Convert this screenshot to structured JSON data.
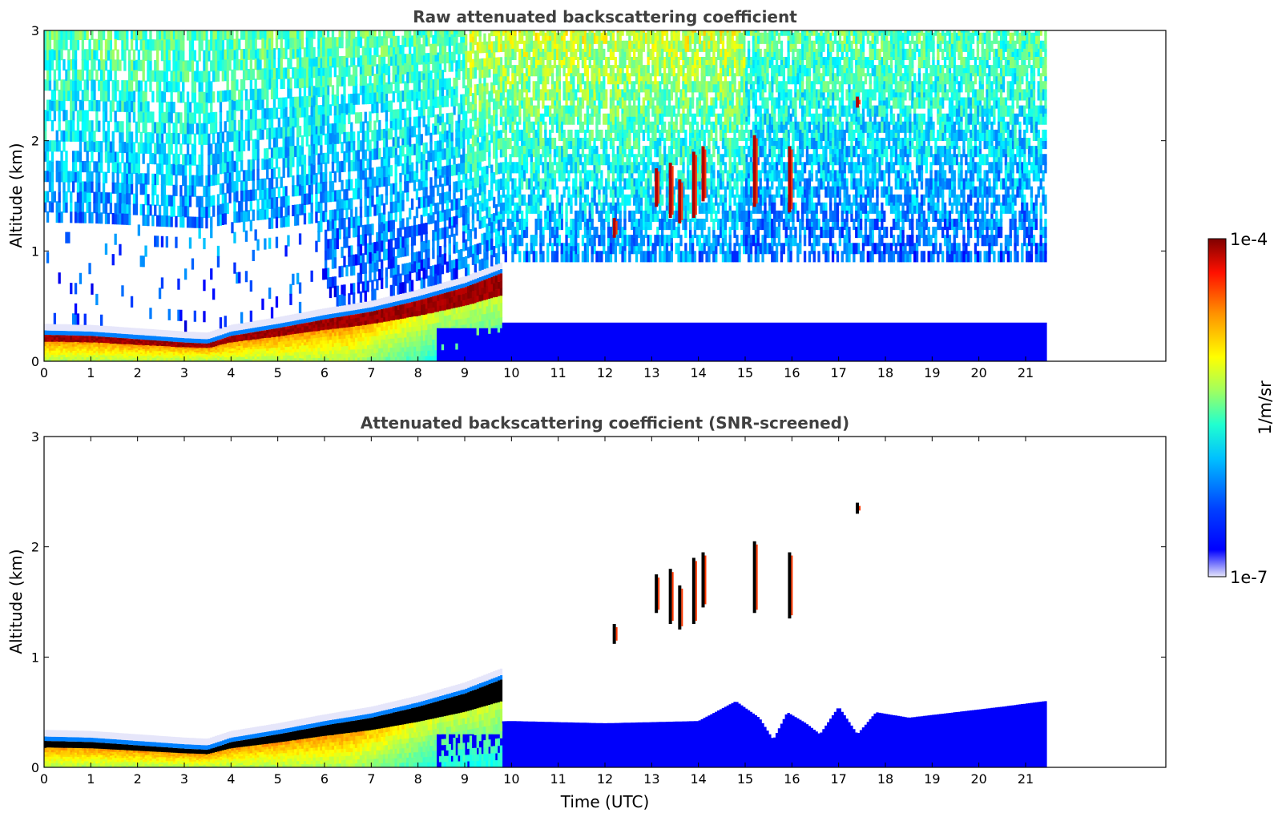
{
  "colors": {
    "jet": [
      "#00008f",
      "#0000ff",
      "#0080ff",
      "#00ffff",
      "#80ff80",
      "#ffff00",
      "#ff8000",
      "#ff0000",
      "#800000"
    ],
    "faint": "#e6e6fa",
    "screened_core": "#000000",
    "background": "#ffffff"
  },
  "chart_data": [
    {
      "type": "heatmap",
      "title": "Raw attenuated backscattering coefficient",
      "xlabel": "",
      "ylabel": "Altitude (km)",
      "xlim": [
        0,
        24
      ],
      "ylim": [
        0,
        3
      ],
      "x_ticks": [
        0,
        1,
        2,
        3,
        4,
        5,
        6,
        7,
        8,
        9,
        10,
        11,
        12,
        13,
        14,
        15,
        16,
        17,
        18,
        19,
        20,
        21
      ],
      "x_tick_labels": [
        "0",
        "1",
        "2",
        "3",
        "4",
        "5",
        "6",
        "7",
        "8",
        "9",
        "10",
        "11",
        "12",
        "13",
        "14",
        "15",
        "16",
        "17",
        "18",
        "19",
        "20",
        "21"
      ],
      "y_ticks": [
        0,
        1,
        2,
        3
      ],
      "y_tick_labels": [
        "0",
        "1",
        "2",
        "3"
      ],
      "data_extent_hours": [
        0,
        21.45
      ],
      "screened": false,
      "layer_top_km": [
        [
          0,
          0.24
        ],
        [
          1,
          0.23
        ],
        [
          2,
          0.2
        ],
        [
          3,
          0.17
        ],
        [
          3.5,
          0.16
        ],
        [
          4,
          0.23
        ],
        [
          5,
          0.3
        ],
        [
          6,
          0.38
        ],
        [
          7,
          0.45
        ],
        [
          8,
          0.55
        ],
        [
          9,
          0.67
        ],
        [
          9.8,
          0.8
        ]
      ],
      "clouds": [
        {
          "t": 12.2,
          "z0": 1.12,
          "z1": 1.3
        },
        {
          "t": 13.1,
          "z0": 1.4,
          "z1": 1.75
        },
        {
          "t": 13.4,
          "z0": 1.3,
          "z1": 1.8
        },
        {
          "t": 13.6,
          "z0": 1.25,
          "z1": 1.65
        },
        {
          "t": 13.9,
          "z0": 1.3,
          "z1": 1.9
        },
        {
          "t": 14.1,
          "z0": 1.45,
          "z1": 1.95
        },
        {
          "t": 15.2,
          "z0": 1.4,
          "z1": 2.05
        },
        {
          "t": 15.95,
          "z0": 1.35,
          "z1": 1.95
        },
        {
          "t": 17.4,
          "z0": 2.3,
          "z1": 2.4
        }
      ]
    },
    {
      "type": "heatmap",
      "title": "Attenuated backscattering coefficient (SNR-screened)",
      "xlabel": "Time (UTC)",
      "ylabel": "Altitude (km)",
      "xlim": [
        0,
        24
      ],
      "ylim": [
        0,
        3
      ],
      "x_ticks": [
        0,
        1,
        2,
        3,
        4,
        5,
        6,
        7,
        8,
        9,
        10,
        11,
        12,
        13,
        14,
        15,
        16,
        17,
        18,
        19,
        20,
        21
      ],
      "x_tick_labels": [
        "0",
        "1",
        "2",
        "3",
        "4",
        "5",
        "6",
        "7",
        "8",
        "9",
        "10",
        "11",
        "12",
        "13",
        "14",
        "15",
        "16",
        "17",
        "18",
        "19",
        "20",
        "21"
      ],
      "y_ticks": [
        0,
        1,
        2,
        3
      ],
      "y_tick_labels": [
        "0",
        "1",
        "2",
        "3"
      ],
      "data_extent_hours": [
        0,
        21.45
      ],
      "screened": true,
      "layer_top_km": [
        [
          0,
          0.24
        ],
        [
          1,
          0.23
        ],
        [
          2,
          0.2
        ],
        [
          3,
          0.17
        ],
        [
          3.5,
          0.16
        ],
        [
          4,
          0.23
        ],
        [
          5,
          0.3
        ],
        [
          6,
          0.38
        ],
        [
          7,
          0.45
        ],
        [
          8,
          0.55
        ],
        [
          9,
          0.67
        ],
        [
          9.8,
          0.8
        ]
      ],
      "boundary_layer_top_km": [
        [
          8.6,
          0.4
        ],
        [
          10,
          0.42
        ],
        [
          12,
          0.4
        ],
        [
          14,
          0.42
        ],
        [
          14.8,
          0.6
        ],
        [
          15.3,
          0.45
        ],
        [
          15.6,
          0.25
        ],
        [
          15.9,
          0.5
        ],
        [
          16.3,
          0.4
        ],
        [
          16.6,
          0.3
        ],
        [
          17,
          0.55
        ],
        [
          17.4,
          0.3
        ],
        [
          17.8,
          0.5
        ],
        [
          18.5,
          0.45
        ],
        [
          19.5,
          0.5
        ],
        [
          20.5,
          0.55
        ],
        [
          21.4,
          0.6
        ]
      ],
      "clouds": [
        {
          "t": 12.2,
          "z0": 1.12,
          "z1": 1.3
        },
        {
          "t": 13.1,
          "z0": 1.4,
          "z1": 1.75
        },
        {
          "t": 13.4,
          "z0": 1.3,
          "z1": 1.8
        },
        {
          "t": 13.6,
          "z0": 1.25,
          "z1": 1.65
        },
        {
          "t": 13.9,
          "z0": 1.3,
          "z1": 1.9
        },
        {
          "t": 14.1,
          "z0": 1.45,
          "z1": 1.95
        },
        {
          "t": 15.2,
          "z0": 1.4,
          "z1": 2.05
        },
        {
          "t": 15.95,
          "z0": 1.35,
          "z1": 1.95
        },
        {
          "t": 17.4,
          "z0": 2.3,
          "z1": 2.4
        }
      ]
    },
    {
      "type": "colorbar",
      "label": "1/m/sr",
      "max_label": "1e-4",
      "min_label": "1e-7",
      "vmin": 1e-07,
      "vmax": 0.0001,
      "scale": "log",
      "colormap": "jet"
    }
  ]
}
